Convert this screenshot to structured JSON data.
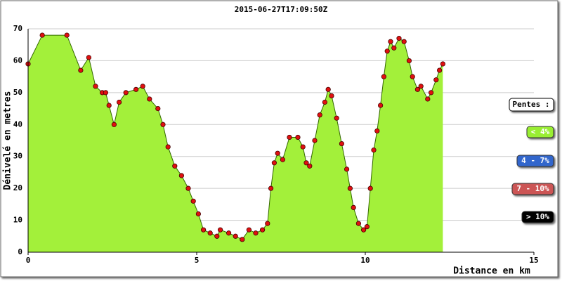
{
  "chart_data": {
    "type": "area",
    "title": "2015-06-27T17:09:50Z",
    "x_label": "Distance en km",
    "y_label": "Dénivelé en metres",
    "xlim": [
      0,
      15
    ],
    "xticks": [
      0,
      5,
      10,
      15
    ],
    "ylim": [
      0,
      70
    ],
    "yticks": [
      0,
      10,
      20,
      30,
      40,
      50,
      60,
      70
    ],
    "grid": true,
    "color": "#a3f03a",
    "line_color": "#336600",
    "marker_color": "#e01010",
    "x": [
      0,
      0.42,
      1.15,
      1.56,
      1.8,
      2.0,
      2.2,
      2.3,
      2.4,
      2.55,
      2.7,
      2.9,
      3.2,
      3.4,
      3.6,
      3.85,
      4.0,
      4.15,
      4.35,
      4.55,
      4.75,
      4.9,
      5.05,
      5.2,
      5.4,
      5.6,
      5.7,
      5.95,
      6.15,
      6.35,
      6.55,
      6.75,
      6.95,
      7.1,
      7.2,
      7.3,
      7.4,
      7.55,
      7.75,
      8.0,
      8.15,
      8.25,
      8.35,
      8.5,
      8.65,
      8.8,
      8.9,
      9.0,
      9.15,
      9.3,
      9.45,
      9.55,
      9.65,
      9.8,
      9.95,
      10.05,
      10.15,
      10.25,
      10.35,
      10.45,
      10.55,
      10.65,
      10.75,
      10.85,
      11.0,
      11.15,
      11.3,
      11.4,
      11.55,
      11.65,
      11.85,
      11.95,
      12.1,
      12.2,
      12.3
    ],
    "values": [
      59,
      68,
      68,
      57,
      61,
      52,
      50,
      50,
      46,
      40,
      47,
      50,
      51,
      52,
      48,
      45,
      40,
      33,
      27,
      24,
      20,
      16,
      12,
      7,
      6,
      5,
      7,
      6,
      5,
      4,
      7,
      6,
      7,
      9,
      20,
      28,
      31,
      29,
      36,
      36,
      33,
      28,
      27,
      35,
      43,
      47,
      51,
      49,
      42,
      34,
      26,
      20,
      14,
      9,
      7,
      8,
      20,
      32,
      38,
      46,
      55,
      63,
      66,
      64,
      67,
      66,
      60,
      55,
      51,
      52,
      48,
      50,
      54,
      57,
      59
    ],
    "legend_title": "Pentes :",
    "legend": [
      {
        "label": "< 4%",
        "color": "#99ee33"
      },
      {
        "label": "4 - 7%",
        "color": "#3366cc"
      },
      {
        "label": "7 - 10%",
        "color": "#cc5555"
      },
      {
        "label": "> 10%",
        "color": "#000000"
      }
    ]
  }
}
